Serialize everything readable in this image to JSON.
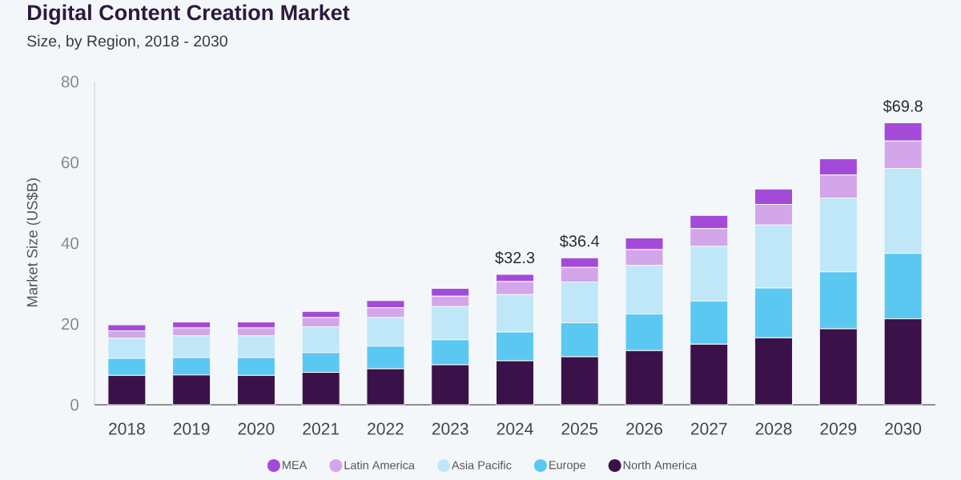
{
  "chart_data": {
    "type": "bar",
    "title": "Digital Content Creation Market",
    "subtitle": "Size, by Region, 2018 - 2030",
    "ylabel": "Market Size (US$B)",
    "categories": [
      "2018",
      "2019",
      "2020",
      "2021",
      "2022",
      "2023",
      "2024",
      "2025",
      "2026",
      "2027",
      "2028",
      "2029",
      "2030"
    ],
    "stacked": true,
    "series": [
      {
        "name": "North America",
        "color": "#3a1249",
        "values": [
          7.3,
          7.4,
          7.3,
          8.0,
          8.9,
          9.9,
          10.9,
          11.9,
          13.4,
          15.0,
          16.6,
          18.8,
          21.3
        ]
      },
      {
        "name": "Europe",
        "color": "#5bc8f2",
        "values": [
          4.2,
          4.3,
          4.4,
          4.9,
          5.6,
          6.2,
          7.1,
          8.4,
          9.1,
          10.7,
          12.3,
          14.1,
          16.2
        ]
      },
      {
        "name": "Asia Pacific",
        "color": "#bfe7f8",
        "values": [
          5.0,
          5.4,
          5.4,
          6.4,
          7.1,
          8.2,
          9.3,
          10.1,
          12.0,
          13.5,
          15.6,
          18.3,
          21.0
        ]
      },
      {
        "name": "Latin America",
        "color": "#d3a6ea",
        "values": [
          1.8,
          1.9,
          1.9,
          2.3,
          2.4,
          2.6,
          3.2,
          3.6,
          3.9,
          4.4,
          5.1,
          5.7,
          6.8
        ]
      },
      {
        "name": "MEA",
        "color": "#a34bd8",
        "values": [
          1.5,
          1.5,
          1.5,
          1.5,
          1.8,
          1.9,
          1.8,
          2.4,
          2.9,
          3.3,
          3.8,
          4.0,
          4.5
        ]
      }
    ],
    "ylim": [
      0,
      80
    ],
    "yticks": [
      0,
      20,
      40,
      60,
      80
    ],
    "totals": [
      null,
      null,
      null,
      null,
      null,
      null,
      "$32.3",
      "$36.4",
      null,
      null,
      null,
      null,
      "$69.8"
    ],
    "legend": "bottom"
  }
}
